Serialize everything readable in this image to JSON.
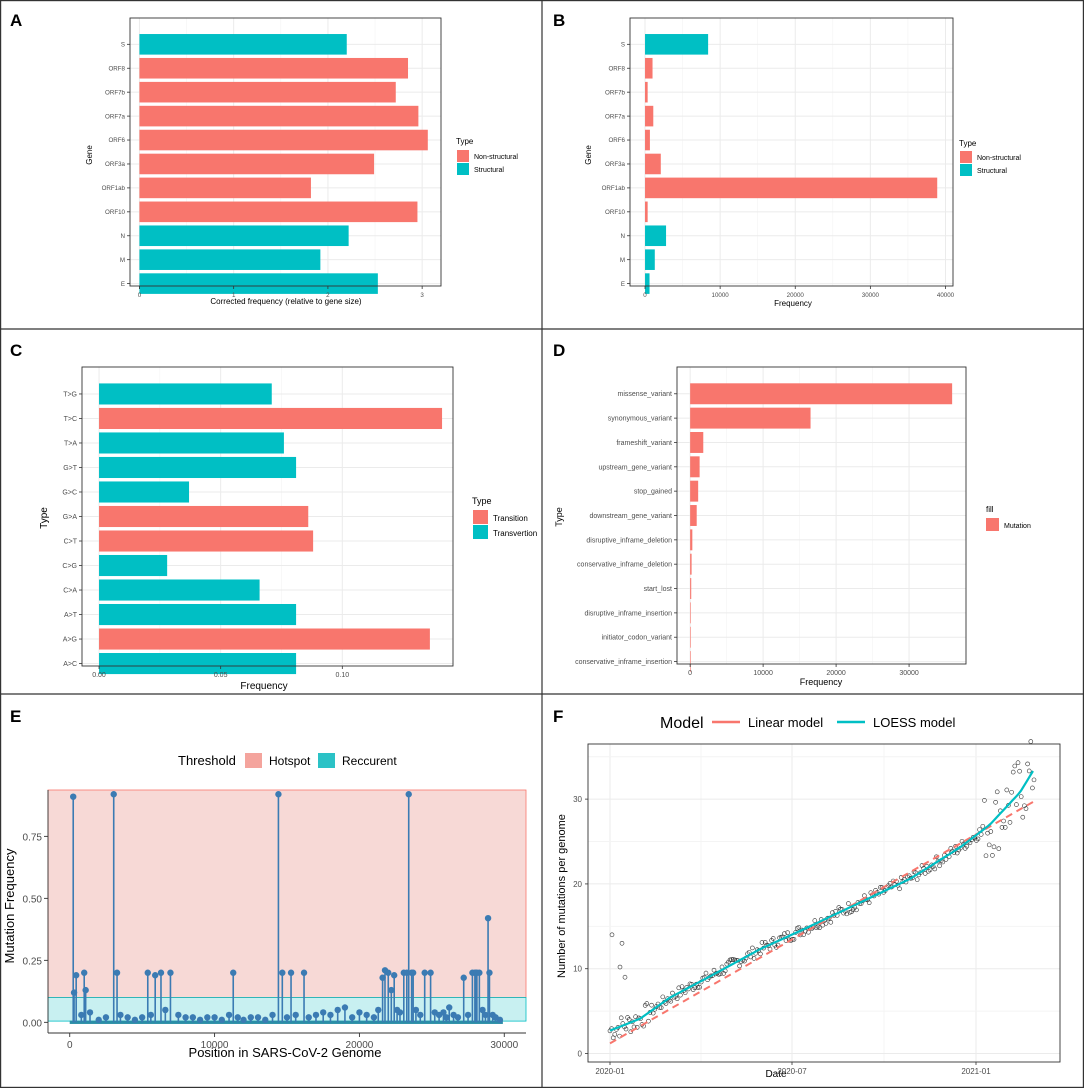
{
  "colors": {
    "red": "#f8766d",
    "teal": "#00bfc4",
    "lollipop": "#3b7bb3",
    "hotspot_bg": "#f7d9d6",
    "recurrent_bg": "#c8f0f1",
    "grid": "#ebebeb",
    "panel_border": "#333333"
  },
  "chart_data": [
    {
      "panel": "A",
      "type": "bar",
      "orientation": "horizontal",
      "xlabel": "Corrected frequency (relative to gene size)",
      "ylabel": "Gene",
      "xlim": [
        -0.1,
        3.2
      ],
      "xticks": [
        0,
        1,
        2,
        3
      ],
      "categories": [
        "S",
        "ORF8",
        "ORF7b",
        "ORF7a",
        "ORF6",
        "ORF3a",
        "ORF1ab",
        "ORF10",
        "N",
        "M",
        "E"
      ],
      "values": [
        2.2,
        2.85,
        2.72,
        2.96,
        3.06,
        2.49,
        1.82,
        2.95,
        2.22,
        1.92,
        2.53
      ],
      "groups": [
        "Structural",
        "Non-structural",
        "Non-structural",
        "Non-structural",
        "Non-structural",
        "Non-structural",
        "Non-structural",
        "Non-structural",
        "Structural",
        "Structural",
        "Structural"
      ],
      "legend": {
        "title": "Type",
        "entries": [
          "Non-structural",
          "Structural"
        ]
      }
    },
    {
      "panel": "B",
      "type": "bar",
      "orientation": "horizontal",
      "xlabel": "Frequency",
      "ylabel": "Gene",
      "xlim": [
        -2000,
        41000
      ],
      "xticks": [
        0,
        10000,
        20000,
        30000,
        40000
      ],
      "categories": [
        "S",
        "ORF8",
        "ORF7b",
        "ORF7a",
        "ORF6",
        "ORF3a",
        "ORF1ab",
        "ORF10",
        "N",
        "M",
        "E"
      ],
      "values": [
        8400,
        1000,
        350,
        1100,
        650,
        2100,
        38900,
        350,
        2800,
        1300,
        600
      ],
      "groups": [
        "Structural",
        "Non-structural",
        "Non-structural",
        "Non-structural",
        "Non-structural",
        "Non-structural",
        "Non-structural",
        "Non-structural",
        "Structural",
        "Structural",
        "Structural"
      ],
      "legend": {
        "title": "Type",
        "entries": [
          "Non-structural",
          "Structural"
        ]
      }
    },
    {
      "panel": "C",
      "type": "bar",
      "orientation": "horizontal",
      "xlabel": "Frequency",
      "ylabel": "Type",
      "xlim": [
        -0.007,
        0.1455
      ],
      "xticks": [
        0.0,
        0.05,
        0.1
      ],
      "xticklabels": [
        "0.00",
        "0.05",
        "0.10"
      ],
      "categories": [
        "T>G",
        "T>C",
        "T>A",
        "G>T",
        "G>C",
        "G>A",
        "C>T",
        "C>G",
        "C>A",
        "A>T",
        "A>G",
        "A>C"
      ],
      "values": [
        0.071,
        0.141,
        0.076,
        0.081,
        0.037,
        0.086,
        0.088,
        0.028,
        0.066,
        0.081,
        0.136,
        0.081
      ],
      "groups": [
        "Transvertion",
        "Transition",
        "Transvertion",
        "Transvertion",
        "Transvertion",
        "Transition",
        "Transition",
        "Transvertion",
        "Transvertion",
        "Transvertion",
        "Transition",
        "Transvertion"
      ],
      "legend": {
        "title": "Type",
        "entries": [
          "Transition",
          "Transvertion"
        ]
      }
    },
    {
      "panel": "D",
      "type": "bar",
      "orientation": "horizontal",
      "xlabel": "Frequency",
      "ylabel": "Type",
      "xlim": [
        -1800,
        37800
      ],
      "xticks": [
        0,
        10000,
        20000,
        30000
      ],
      "categories": [
        "missense_variant",
        "synonymous_variant",
        "frameshift_variant",
        "upstream_gene_variant",
        "stop_gained",
        "downstream_gene_variant",
        "disruptive_inframe_deletion",
        "conservative_inframe_deletion",
        "start_lost",
        "disruptive_inframe_insertion",
        "initiator_codon_variant",
        "conservative_inframe_insertion"
      ],
      "values": [
        35900,
        16500,
        1800,
        1300,
        1100,
        900,
        300,
        200,
        150,
        60,
        30,
        20
      ],
      "groups": [
        "Mutation",
        "Mutation",
        "Mutation",
        "Mutation",
        "Mutation",
        "Mutation",
        "Mutation",
        "Mutation",
        "Mutation",
        "Mutation",
        "Mutation",
        "Mutation"
      ],
      "legend": {
        "title": "fill",
        "entries": [
          "Mutation"
        ]
      }
    },
    {
      "panel": "E",
      "type": "scatter",
      "style": "lollipop",
      "xlabel": "Position in SARS-CoV-2 Genome",
      "ylabel": "Mutation Frequency",
      "xlim": [
        -1500,
        31500
      ],
      "ylim": [
        -0.043,
        0.937
      ],
      "xticks": [
        0,
        10000,
        20000,
        30000
      ],
      "yticks": [
        0.0,
        0.25,
        0.5,
        0.75
      ],
      "yticklabels": [
        "0.00",
        "0.25",
        "0.50",
        "0.75"
      ],
      "thresholds": [
        {
          "name": "Hotspot",
          "from": 0.1,
          "to": 0.937
        },
        {
          "name": "Reccurent",
          "from": 0.005,
          "to": 0.1
        }
      ],
      "legend": {
        "title": "Threshold",
        "entries": [
          "Hotspot",
          "Reccurent"
        ]
      },
      "points": [
        [
          241,
          0.91
        ],
        [
          300,
          0.12
        ],
        [
          445,
          0.19
        ],
        [
          800,
          0.03
        ],
        [
          1000,
          0.2
        ],
        [
          1100,
          0.13
        ],
        [
          1400,
          0.04
        ],
        [
          2000,
          0.01
        ],
        [
          2500,
          0.02
        ],
        [
          3037,
          0.92
        ],
        [
          3267,
          0.2
        ],
        [
          3500,
          0.03
        ],
        [
          4000,
          0.02
        ],
        [
          4500,
          0.01
        ],
        [
          5000,
          0.02
        ],
        [
          5388,
          0.2
        ],
        [
          5600,
          0.03
        ],
        [
          5900,
          0.19
        ],
        [
          6300,
          0.2
        ],
        [
          6600,
          0.05
        ],
        [
          6954,
          0.2
        ],
        [
          7500,
          0.03
        ],
        [
          8000,
          0.02
        ],
        [
          8500,
          0.02
        ],
        [
          9000,
          0.01
        ],
        [
          9500,
          0.02
        ],
        [
          10000,
          0.02
        ],
        [
          10500,
          0.01
        ],
        [
          11000,
          0.03
        ],
        [
          11288,
          0.2
        ],
        [
          11600,
          0.02
        ],
        [
          12000,
          0.01
        ],
        [
          12500,
          0.02
        ],
        [
          13000,
          0.02
        ],
        [
          13500,
          0.01
        ],
        [
          14000,
          0.03
        ],
        [
          14408,
          0.92
        ],
        [
          14676,
          0.2
        ],
        [
          15000,
          0.02
        ],
        [
          15279,
          0.2
        ],
        [
          15600,
          0.03
        ],
        [
          16176,
          0.2
        ],
        [
          16500,
          0.02
        ],
        [
          17000,
          0.03
        ],
        [
          17500,
          0.04
        ],
        [
          18000,
          0.03
        ],
        [
          18500,
          0.05
        ],
        [
          19000,
          0.06
        ],
        [
          19500,
          0.02
        ],
        [
          20000,
          0.04
        ],
        [
          20500,
          0.03
        ],
        [
          21000,
          0.02
        ],
        [
          21300,
          0.05
        ],
        [
          21600,
          0.18
        ],
        [
          21765,
          0.21
        ],
        [
          21991,
          0.2
        ],
        [
          22200,
          0.13
        ],
        [
          22400,
          0.19
        ],
        [
          22600,
          0.05
        ],
        [
          22800,
          0.04
        ],
        [
          23063,
          0.2
        ],
        [
          23271,
          0.2
        ],
        [
          23403,
          0.92
        ],
        [
          23604,
          0.2
        ],
        [
          23709,
          0.2
        ],
        [
          23900,
          0.05
        ],
        [
          24200,
          0.03
        ],
        [
          24506,
          0.2
        ],
        [
          24914,
          0.2
        ],
        [
          25200,
          0.04
        ],
        [
          25500,
          0.03
        ],
        [
          25800,
          0.04
        ],
        [
          26000,
          0.02
        ],
        [
          26200,
          0.06
        ],
        [
          26500,
          0.03
        ],
        [
          26800,
          0.02
        ],
        [
          27200,
          0.18
        ],
        [
          27500,
          0.03
        ],
        [
          27800,
          0.2
        ],
        [
          27972,
          0.2
        ],
        [
          28048,
          0.2
        ],
        [
          28111,
          0.2
        ],
        [
          28280,
          0.2
        ],
        [
          28500,
          0.05
        ],
        [
          28700,
          0.03
        ],
        [
          28881,
          0.42
        ],
        [
          28977,
          0.2
        ],
        [
          29200,
          0.03
        ],
        [
          29400,
          0.02
        ],
        [
          29700,
          0.01
        ]
      ]
    },
    {
      "panel": "F",
      "type": "scatter",
      "xlabel": "Date",
      "ylabel": "Number of mutations per genome",
      "x_unit": "days since 2020-01-01",
      "xlim": [
        -22,
        450
      ],
      "ylim": [
        -1,
        36.5
      ],
      "xticks": [
        0,
        182,
        366
      ],
      "xticklabels": [
        "2020-01",
        "2020-07",
        "2021-01"
      ],
      "yticks": [
        0,
        10,
        20,
        30
      ],
      "legend": {
        "title": "Model",
        "entries": [
          "Linear model",
          "LOESS model"
        ]
      },
      "linear_model": {
        "x": [
          0,
          425
        ],
        "y": [
          1.2,
          29.8
        ]
      },
      "loess_model": {
        "x": [
          0,
          30,
          60,
          100,
          150,
          200,
          250,
          300,
          350,
          380,
          410,
          425
        ],
        "y": [
          2.7,
          4.1,
          6.6,
          9.1,
          12.3,
          15.0,
          17.8,
          20.6,
          24.3,
          27.0,
          30.8,
          33.7
        ]
      },
      "outlier_points": [
        [
          2,
          14
        ],
        [
          12,
          13
        ],
        [
          10,
          10.2
        ],
        [
          15,
          9
        ]
      ]
    }
  ]
}
